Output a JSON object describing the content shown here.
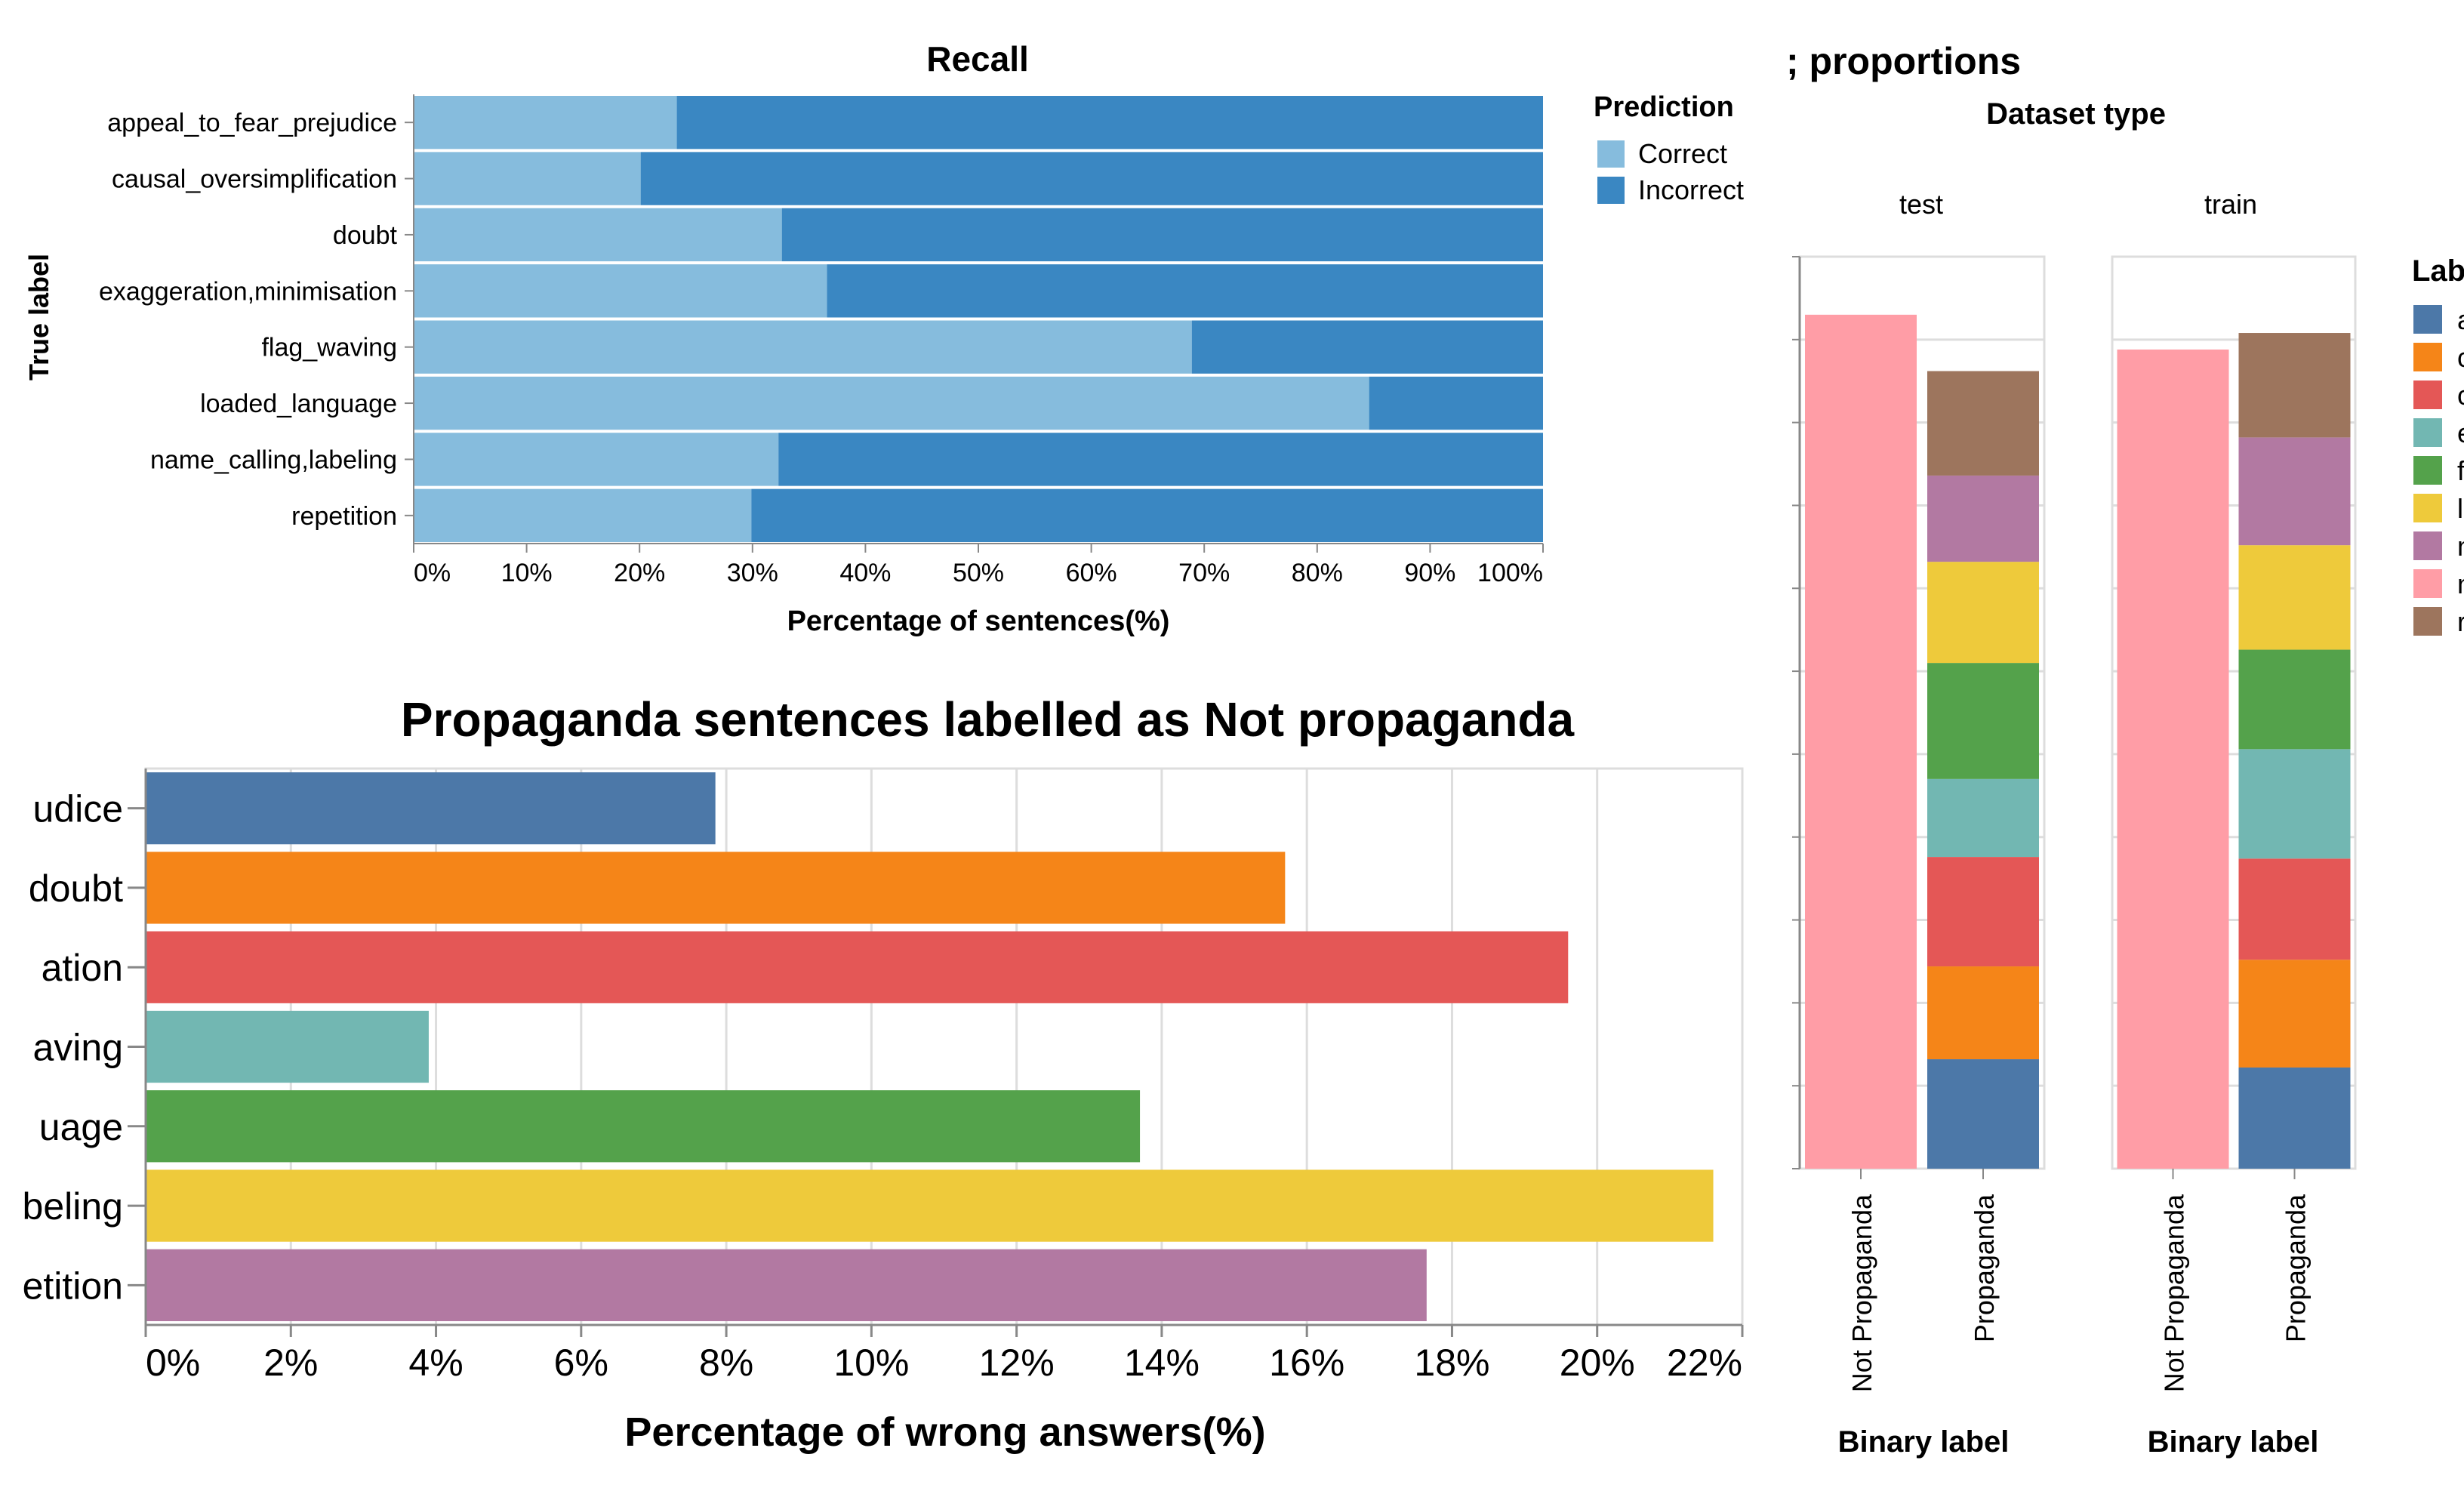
{
  "colors": {
    "correct": "#86bcdd",
    "incorrect": "#3a87c2",
    "grid": "#dddddd",
    "axis": "#888888",
    "label_palette": [
      "#4c78a8",
      "#f58518",
      "#e45756",
      "#72b7b2",
      "#54a24b",
      "#eeca3b",
      "#b279a2",
      "#ff9da6",
      "#9d755d"
    ]
  },
  "chart_data": [
    {
      "type": "bar",
      "orientation": "horizontal-stacked",
      "title": "Recall",
      "xlabel": "Percentage of sentences(%)",
      "ylabel": "True label",
      "xlim": [
        0,
        100
      ],
      "x_ticks": [
        "0%",
        "10%",
        "20%",
        "30%",
        "40%",
        "50%",
        "60%",
        "70%",
        "80%",
        "90%",
        "100%"
      ],
      "categories": [
        "appeal_to_fear_prejudice",
        "causal_oversimplification",
        "doubt",
        "exaggeration,minimisation",
        "flag_waving",
        "loaded_language",
        "name_calling,labeling",
        "repetition"
      ],
      "series": [
        {
          "name": "Correct",
          "values": [
            23.3,
            20.1,
            32.6,
            36.6,
            68.9,
            84.6,
            32.3,
            29.9
          ]
        },
        {
          "name": "Incorrect",
          "values": [
            76.7,
            79.9,
            67.4,
            63.4,
            31.1,
            15.4,
            67.7,
            70.1
          ]
        }
      ],
      "legend": {
        "title": "Prediction",
        "position": "right"
      }
    },
    {
      "type": "bar",
      "orientation": "horizontal",
      "title": "Propaganda sentences labelled as Not propaganda",
      "xlabel": "Percentage of wrong answers(%)",
      "xlim": [
        0,
        22
      ],
      "x_ticks": [
        "0%",
        "2%",
        "4%",
        "6%",
        "8%",
        "10%",
        "12%",
        "14%",
        "16%",
        "18%",
        "20%",
        "22%"
      ],
      "categories": [
        "udice",
        "doubt",
        "ation",
        "aving",
        "uage",
        "beling",
        "etition"
      ],
      "values": [
        7.85,
        15.7,
        19.6,
        3.9,
        13.7,
        21.6,
        17.65
      ],
      "grid": true
    },
    {
      "type": "bar",
      "orientation": "vertical-stacked-faceted",
      "title_fragment": "; proportions",
      "facet_title": "Dataset type",
      "facets": [
        "test",
        "train"
      ],
      "xlabel": "Binary label",
      "categories": [
        "Not Propaganda",
        "Propaganda"
      ],
      "legend": {
        "title_fragment": "Lab",
        "entries": [
          "a",
          "c",
          "c",
          "e",
          "f",
          "l",
          "n",
          "n",
          "r"
        ],
        "position": "right"
      },
      "stacks": {
        "test": {
          "Not Propaganda": [
            {
              "color_index": 7,
              "value": 51.5
            }
          ],
          "Propaganda": [
            {
              "color_index": 0,
              "value": 6.6
            },
            {
              "color_index": 1,
              "value": 5.6
            },
            {
              "color_index": 2,
              "value": 6.6
            },
            {
              "color_index": 3,
              "value": 4.7
            },
            {
              "color_index": 4,
              "value": 7.0
            },
            {
              "color_index": 5,
              "value": 6.1
            },
            {
              "color_index": 6,
              "value": 5.2
            },
            {
              "color_index": 8,
              "value": 6.3
            }
          ]
        },
        "train": {
          "Not Propaganda": [
            {
              "color_index": 7,
              "value": 49.4
            }
          ],
          "Propaganda": [
            {
              "color_index": 0,
              "value": 6.1
            },
            {
              "color_index": 1,
              "value": 6.5
            },
            {
              "color_index": 2,
              "value": 6.1
            },
            {
              "color_index": 3,
              "value": 6.6
            },
            {
              "color_index": 4,
              "value": 6.0
            },
            {
              "color_index": 5,
              "value": 6.3
            },
            {
              "color_index": 6,
              "value": 6.5
            },
            {
              "color_index": 8,
              "value": 6.3
            }
          ]
        }
      },
      "ylim": [
        0,
        55
      ]
    }
  ]
}
